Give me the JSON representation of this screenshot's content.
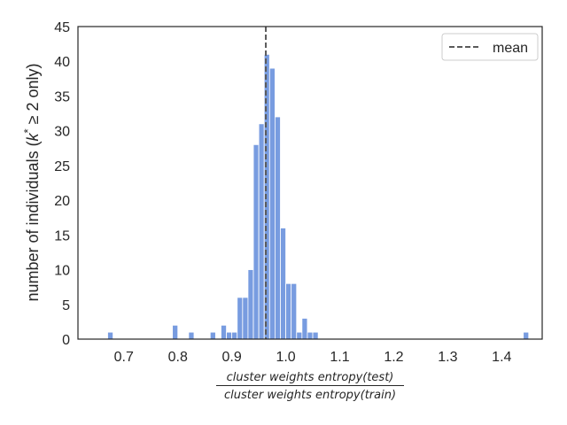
{
  "chart_data": {
    "type": "histogram",
    "bin_width": 0.01,
    "bins": [
      {
        "x": 0.67,
        "count": 1
      },
      {
        "x": 0.79,
        "count": 2
      },
      {
        "x": 0.82,
        "count": 1
      },
      {
        "x": 0.86,
        "count": 1
      },
      {
        "x": 0.88,
        "count": 2
      },
      {
        "x": 0.89,
        "count": 1
      },
      {
        "x": 0.9,
        "count": 1
      },
      {
        "x": 0.91,
        "count": 6
      },
      {
        "x": 0.92,
        "count": 6
      },
      {
        "x": 0.93,
        "count": 10
      },
      {
        "x": 0.94,
        "count": 28
      },
      {
        "x": 0.95,
        "count": 31
      },
      {
        "x": 0.96,
        "count": 41
      },
      {
        "x": 0.97,
        "count": 39
      },
      {
        "x": 0.98,
        "count": 32
      },
      {
        "x": 0.99,
        "count": 16
      },
      {
        "x": 1.0,
        "count": 8
      },
      {
        "x": 1.01,
        "count": 8
      },
      {
        "x": 1.02,
        "count": 1
      },
      {
        "x": 1.03,
        "count": 3
      },
      {
        "x": 1.04,
        "count": 1
      },
      {
        "x": 1.05,
        "count": 1
      },
      {
        "x": 1.44,
        "count": 1
      }
    ],
    "mean": 0.963,
    "xlim": [
      0.615,
      1.475
    ],
    "ylim": [
      0,
      45
    ],
    "x_ticks": [
      0.7,
      0.8,
      0.9,
      1.0,
      1.1,
      1.2,
      1.3,
      1.4
    ],
    "x_tick_labels": [
      "0.7",
      "0.8",
      "0.9",
      "1.0",
      "1.1",
      "1.2",
      "1.3",
      "1.4"
    ],
    "y_ticks": [
      0,
      5,
      10,
      15,
      20,
      25,
      30,
      35,
      40,
      45
    ],
    "y_tick_labels": [
      "0",
      "5",
      "10",
      "15",
      "20",
      "25",
      "30",
      "35",
      "40",
      "45"
    ],
    "ylabel_parts": [
      "number of individuals (",
      "k",
      "*",
      " ≥ 2 only)"
    ],
    "xlabel_numerator": "cluster weights entropy(test)",
    "xlabel_denominator": "cluster weights entropy(train)",
    "legend": {
      "label": "mean",
      "location": "top-right"
    },
    "colors": {
      "bars": "#789ce0",
      "bar_edge": "#ffffff",
      "mean_line": "#5a5a5a",
      "frame": "#262626"
    }
  }
}
